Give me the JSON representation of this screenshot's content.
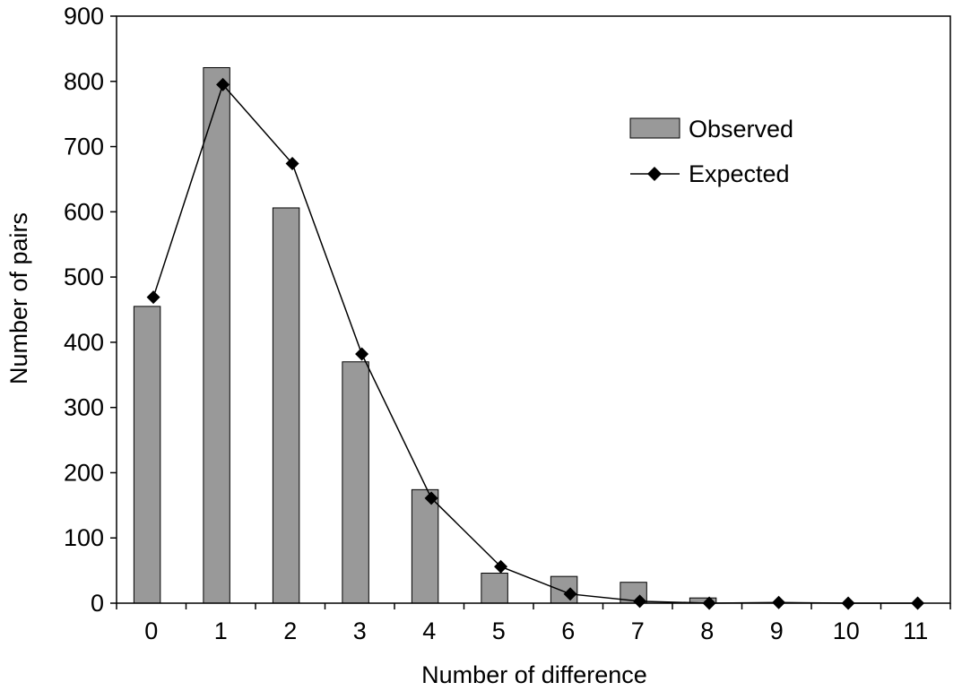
{
  "chart_data": {
    "type": "bar",
    "categories": [
      "0",
      "1",
      "2",
      "3",
      "4",
      "5",
      "6",
      "7",
      "8",
      "9",
      "10",
      "11"
    ],
    "series": [
      {
        "name": "Observed",
        "kind": "bar",
        "color": "#999999",
        "values": [
          455,
          821,
          606,
          370,
          174,
          46,
          41,
          32,
          8,
          0,
          0,
          0
        ]
      },
      {
        "name": "Expected",
        "kind": "line",
        "color": "#000000",
        "marker": "diamond",
        "values": [
          469,
          795,
          674,
          382,
          161,
          56,
          14,
          3,
          0,
          1,
          0,
          0
        ]
      }
    ],
    "title": "",
    "xlabel": "Number of difference",
    "ylabel": "Number of pairs",
    "ylim": [
      0,
      900
    ],
    "yticks": [
      0,
      100,
      200,
      300,
      400,
      500,
      600,
      700,
      800,
      900
    ],
    "grid": false,
    "legend_position": "top-right"
  }
}
